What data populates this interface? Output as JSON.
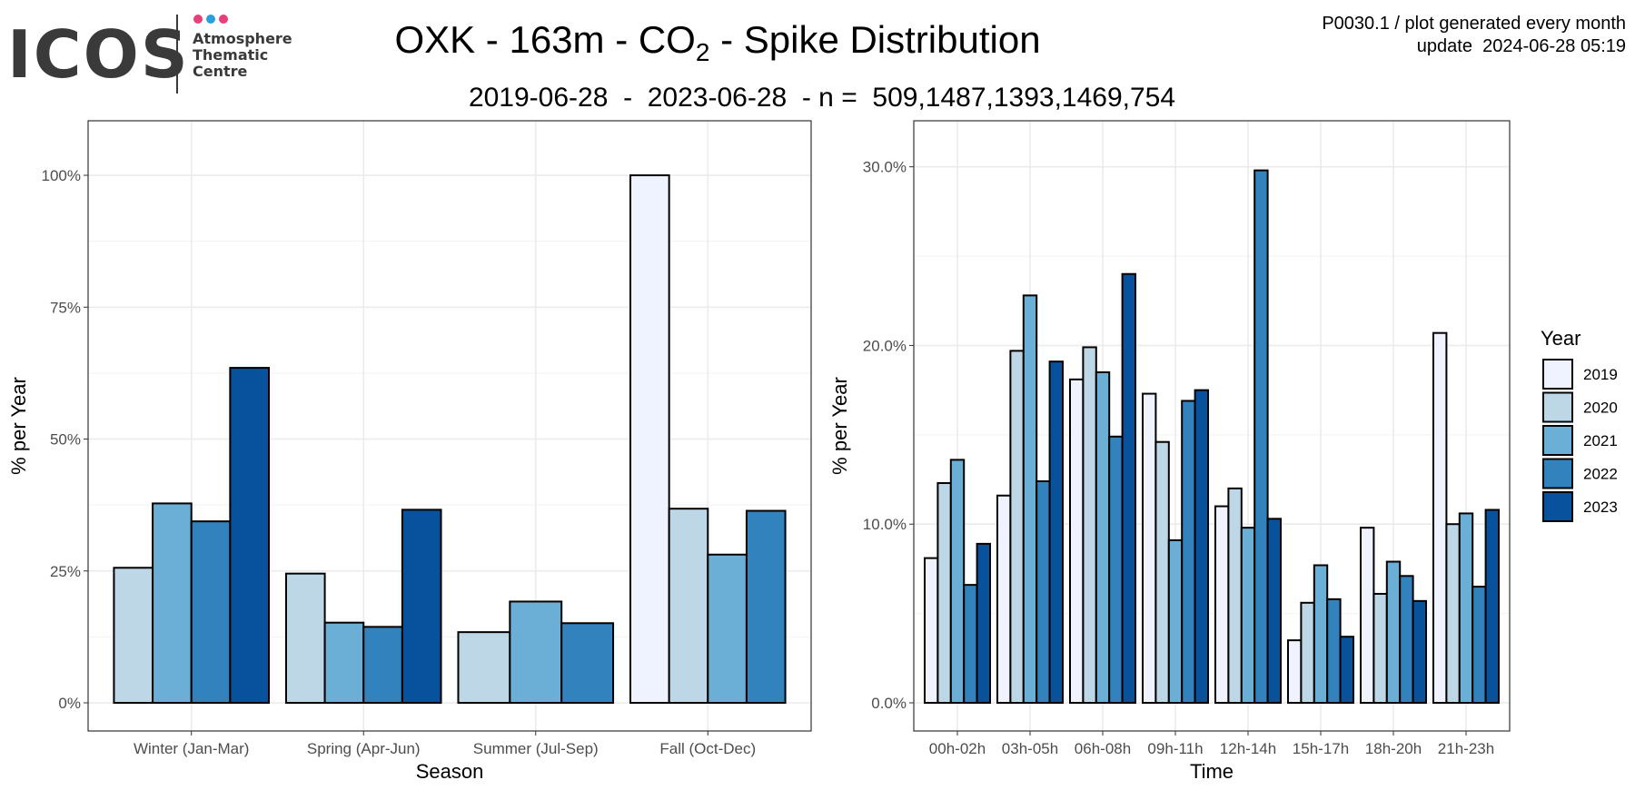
{
  "header": {
    "title_pre": "OXK - 163m - CO",
    "title_sub": "2",
    "title_post": " - Spike Distribution",
    "subtitle": "2019-06-28  -  2023-06-28  - n =  509,1487,1393,1469,754",
    "meta_line1": "P0030.1 / plot generated every month",
    "meta_line2": "update  2024-06-28 05:19"
  },
  "logo": {
    "wordmark": "ICOS",
    "line1": "Atmosphere",
    "line2": "Thematic",
    "line3": "Centre",
    "dot_colors": [
      "#e83e7a",
      "#2a9fe0",
      "#e83e7a"
    ]
  },
  "legend": {
    "title": "Year",
    "items": [
      {
        "label": "2019",
        "color": "#eff3ff"
      },
      {
        "label": "2020",
        "color": "#bdd7e7"
      },
      {
        "label": "2021",
        "color": "#6baed6"
      },
      {
        "label": "2022",
        "color": "#3182bd"
      },
      {
        "label": "2023",
        "color": "#08519c"
      }
    ]
  },
  "chart_data": [
    {
      "type": "bar",
      "xlabel": "Season",
      "ylabel": "% per Year",
      "ylim": [
        0,
        105
      ],
      "y_ticks": [
        0,
        25,
        50,
        75,
        100
      ],
      "y_tick_labels": [
        "0%",
        "25%",
        "50%",
        "75%",
        "100%"
      ],
      "grid": true,
      "legend": "right",
      "categories": [
        "Winter (Jan-Mar)",
        "Spring (Apr-Jun)",
        "Summer (Jul-Sep)",
        "Fall (Oct-Dec)"
      ],
      "groups": [
        {
          "bars": [
            {
              "year": "2020",
              "value": 25.6
            },
            {
              "year": "2021",
              "value": 37.8
            },
            {
              "year": "2022",
              "value": 34.4
            },
            {
              "year": "2023",
              "value": 63.5
            }
          ]
        },
        {
          "bars": [
            {
              "year": "2020",
              "value": 24.5
            },
            {
              "year": "2021",
              "value": 15.2
            },
            {
              "year": "2022",
              "value": 14.4
            },
            {
              "year": "2023",
              "value": 36.6
            }
          ]
        },
        {
          "bars": [
            {
              "year": "2020",
              "value": 13.4
            },
            {
              "year": "2021",
              "value": 19.2
            },
            {
              "year": "2022",
              "value": 15.1
            }
          ]
        },
        {
          "bars": [
            {
              "year": "2019",
              "value": 100.0
            },
            {
              "year": "2020",
              "value": 36.8
            },
            {
              "year": "2021",
              "value": 28.1
            },
            {
              "year": "2022",
              "value": 36.4
            }
          ]
        }
      ]
    },
    {
      "type": "bar",
      "xlabel": "Time",
      "ylabel": "% per Year",
      "ylim": [
        0,
        31
      ],
      "y_ticks": [
        0,
        10,
        20,
        30
      ],
      "y_tick_labels": [
        "0.0%",
        "10.0%",
        "20.0%",
        "30.0%"
      ],
      "grid": true,
      "legend": "right",
      "categories": [
        "00h-02h",
        "03h-05h",
        "06h-08h",
        "09h-11h",
        "12h-14h",
        "15h-17h",
        "18h-20h",
        "21h-23h"
      ],
      "groups": [
        {
          "bars": [
            {
              "year": "2019",
              "value": 8.1
            },
            {
              "year": "2020",
              "value": 12.3
            },
            {
              "year": "2021",
              "value": 13.6
            },
            {
              "year": "2022",
              "value": 6.6
            },
            {
              "year": "2023",
              "value": 8.9
            }
          ]
        },
        {
          "bars": [
            {
              "year": "2019",
              "value": 11.6
            },
            {
              "year": "2020",
              "value": 19.7
            },
            {
              "year": "2021",
              "value": 22.8
            },
            {
              "year": "2022",
              "value": 12.4
            },
            {
              "year": "2023",
              "value": 19.1
            }
          ]
        },
        {
          "bars": [
            {
              "year": "2019",
              "value": 18.1
            },
            {
              "year": "2020",
              "value": 19.9
            },
            {
              "year": "2021",
              "value": 18.5
            },
            {
              "year": "2022",
              "value": 14.9
            },
            {
              "year": "2023",
              "value": 24.0
            }
          ]
        },
        {
          "bars": [
            {
              "year": "2019",
              "value": 17.3
            },
            {
              "year": "2020",
              "value": 14.6
            },
            {
              "year": "2021",
              "value": 9.1
            },
            {
              "year": "2022",
              "value": 16.9
            },
            {
              "year": "2023",
              "value": 17.5
            }
          ]
        },
        {
          "bars": [
            {
              "year": "2019",
              "value": 11.0
            },
            {
              "year": "2020",
              "value": 12.0
            },
            {
              "year": "2021",
              "value": 9.8
            },
            {
              "year": "2022",
              "value": 29.8
            },
            {
              "year": "2023",
              "value": 10.3
            }
          ]
        },
        {
          "bars": [
            {
              "year": "2019",
              "value": 3.5
            },
            {
              "year": "2020",
              "value": 5.6
            },
            {
              "year": "2021",
              "value": 7.7
            },
            {
              "year": "2022",
              "value": 5.8
            },
            {
              "year": "2023",
              "value": 3.7
            }
          ]
        },
        {
          "bars": [
            {
              "year": "2019",
              "value": 9.8
            },
            {
              "year": "2020",
              "value": 6.1
            },
            {
              "year": "2021",
              "value": 7.9
            },
            {
              "year": "2022",
              "value": 7.1
            },
            {
              "year": "2023",
              "value": 5.7
            }
          ]
        },
        {
          "bars": [
            {
              "year": "2019",
              "value": 20.7
            },
            {
              "year": "2020",
              "value": 10.0
            },
            {
              "year": "2021",
              "value": 10.6
            },
            {
              "year": "2022",
              "value": 6.5
            },
            {
              "year": "2023",
              "value": 10.8
            }
          ]
        }
      ]
    }
  ]
}
